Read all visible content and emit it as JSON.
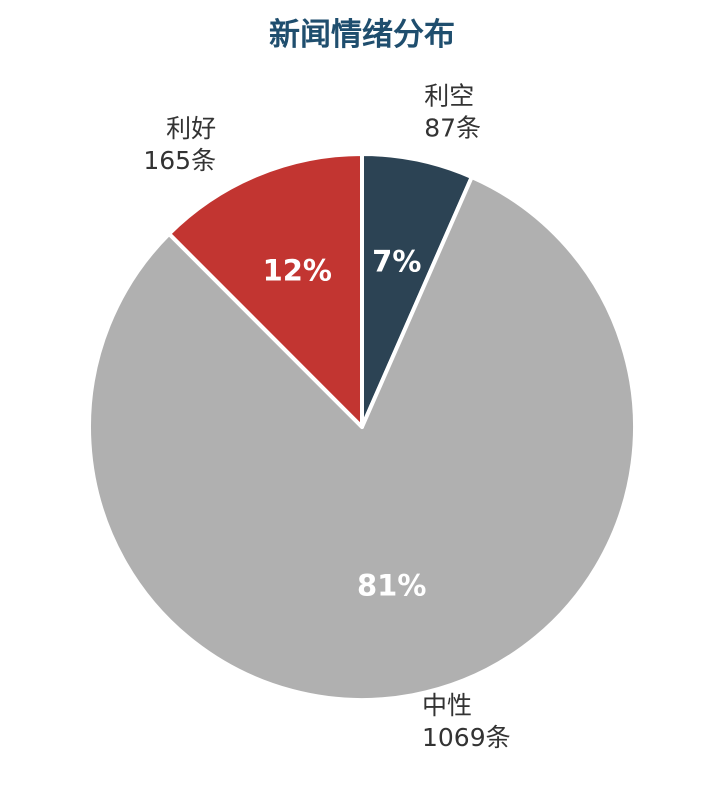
{
  "chart_data": {
    "type": "pie",
    "title": "新闻情绪分布",
    "title_color": "#1f4e6e",
    "start_angle_deg": 0,
    "direction": "clockwise",
    "slices": [
      {
        "name": "利空",
        "count_label": "87条",
        "value": 87,
        "percent_label": "7%",
        "color": "#2c4354",
        "label_side": "right"
      },
      {
        "name": "中性",
        "count_label": "1069条",
        "value": 1069,
        "percent_label": "81%",
        "color": "#b0b0b0",
        "label_side": "right"
      },
      {
        "name": "利好",
        "count_label": "165条",
        "value": 165,
        "percent_label": "12%",
        "color": "#c23531",
        "label_side": "left"
      }
    ],
    "percent_label_color": "#ffffff",
    "slice_border_color": "#ffffff"
  }
}
